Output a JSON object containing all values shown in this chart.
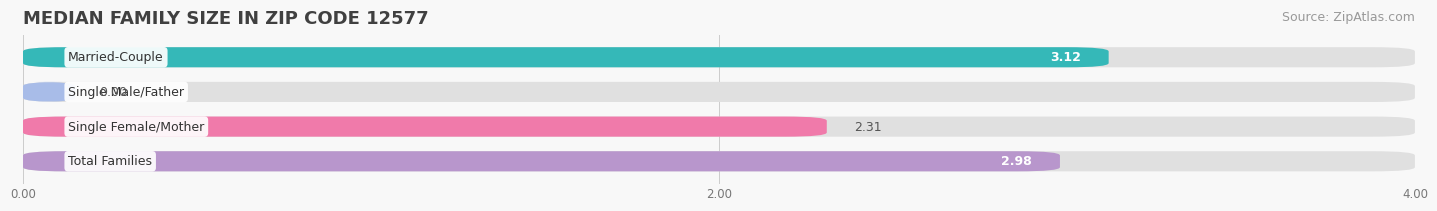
{
  "title": "MEDIAN FAMILY SIZE IN ZIP CODE 12577",
  "source": "Source: ZipAtlas.com",
  "categories": [
    "Married-Couple",
    "Single Male/Father",
    "Single Female/Mother",
    "Total Families"
  ],
  "values": [
    3.12,
    0.0,
    2.31,
    2.98
  ],
  "bar_colors": [
    "#35b8b8",
    "#a8bce8",
    "#f07aaa",
    "#b896cc"
  ],
  "value_inside": [
    true,
    false,
    false,
    true
  ],
  "xlim_max": 4.0,
  "xtick_labels": [
    "0.00",
    "2.00",
    "4.00"
  ],
  "xtick_values": [
    0.0,
    2.0,
    4.0
  ],
  "bg_color": "#f0f0f0",
  "bar_bg_color": "#e0e0e0",
  "bar_height": 0.58,
  "bar_gap": 0.42,
  "title_fontsize": 13,
  "source_fontsize": 9,
  "label_fontsize": 9,
  "value_fontsize": 9
}
